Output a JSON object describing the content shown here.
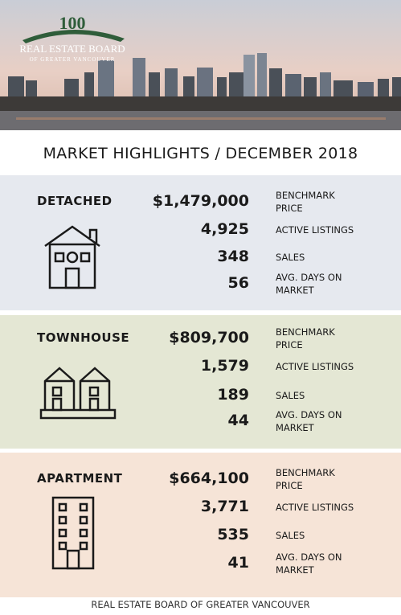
{
  "header": {
    "logo_number": "100",
    "logo_title": "REAL ESTATE BOARD",
    "logo_subtitle": "OF GREATER VANCOUVER"
  },
  "title": "MARKET HIGHLIGHTS / DECEMBER 2018",
  "sections": [
    {
      "name": "DETACHED",
      "stats": [
        {
          "value": "$1,479,000",
          "label": "BENCHMARK PRICE"
        },
        {
          "value": "4,925",
          "label": "ACTIVE LISTINGS"
        },
        {
          "value": "348",
          "label": "SALES"
        },
        {
          "value": "56",
          "label": "AVG. DAYS ON MARKET"
        }
      ]
    },
    {
      "name": "TOWNHOUSE",
      "stats": [
        {
          "value": "$809,700",
          "label": "BENCHMARK PRICE"
        },
        {
          "value": "1,579",
          "label": "ACTIVE LISTINGS"
        },
        {
          "value": "189",
          "label": "SALES"
        },
        {
          "value": "44",
          "label": "AVG. DAYS ON MARKET"
        }
      ]
    },
    {
      "name": "APARTMENT",
      "stats": [
        {
          "value": "$664,100",
          "label": "BENCHMARK PRICE"
        },
        {
          "value": "3,771",
          "label": "ACTIVE LISTINGS"
        },
        {
          "value": "535",
          "label": "SALES"
        },
        {
          "value": "41",
          "label": "AVG. DAYS ON MARKET"
        }
      ]
    }
  ],
  "footer": "REAL ESTATE BOARD OF GREATER VANCOUVER"
}
